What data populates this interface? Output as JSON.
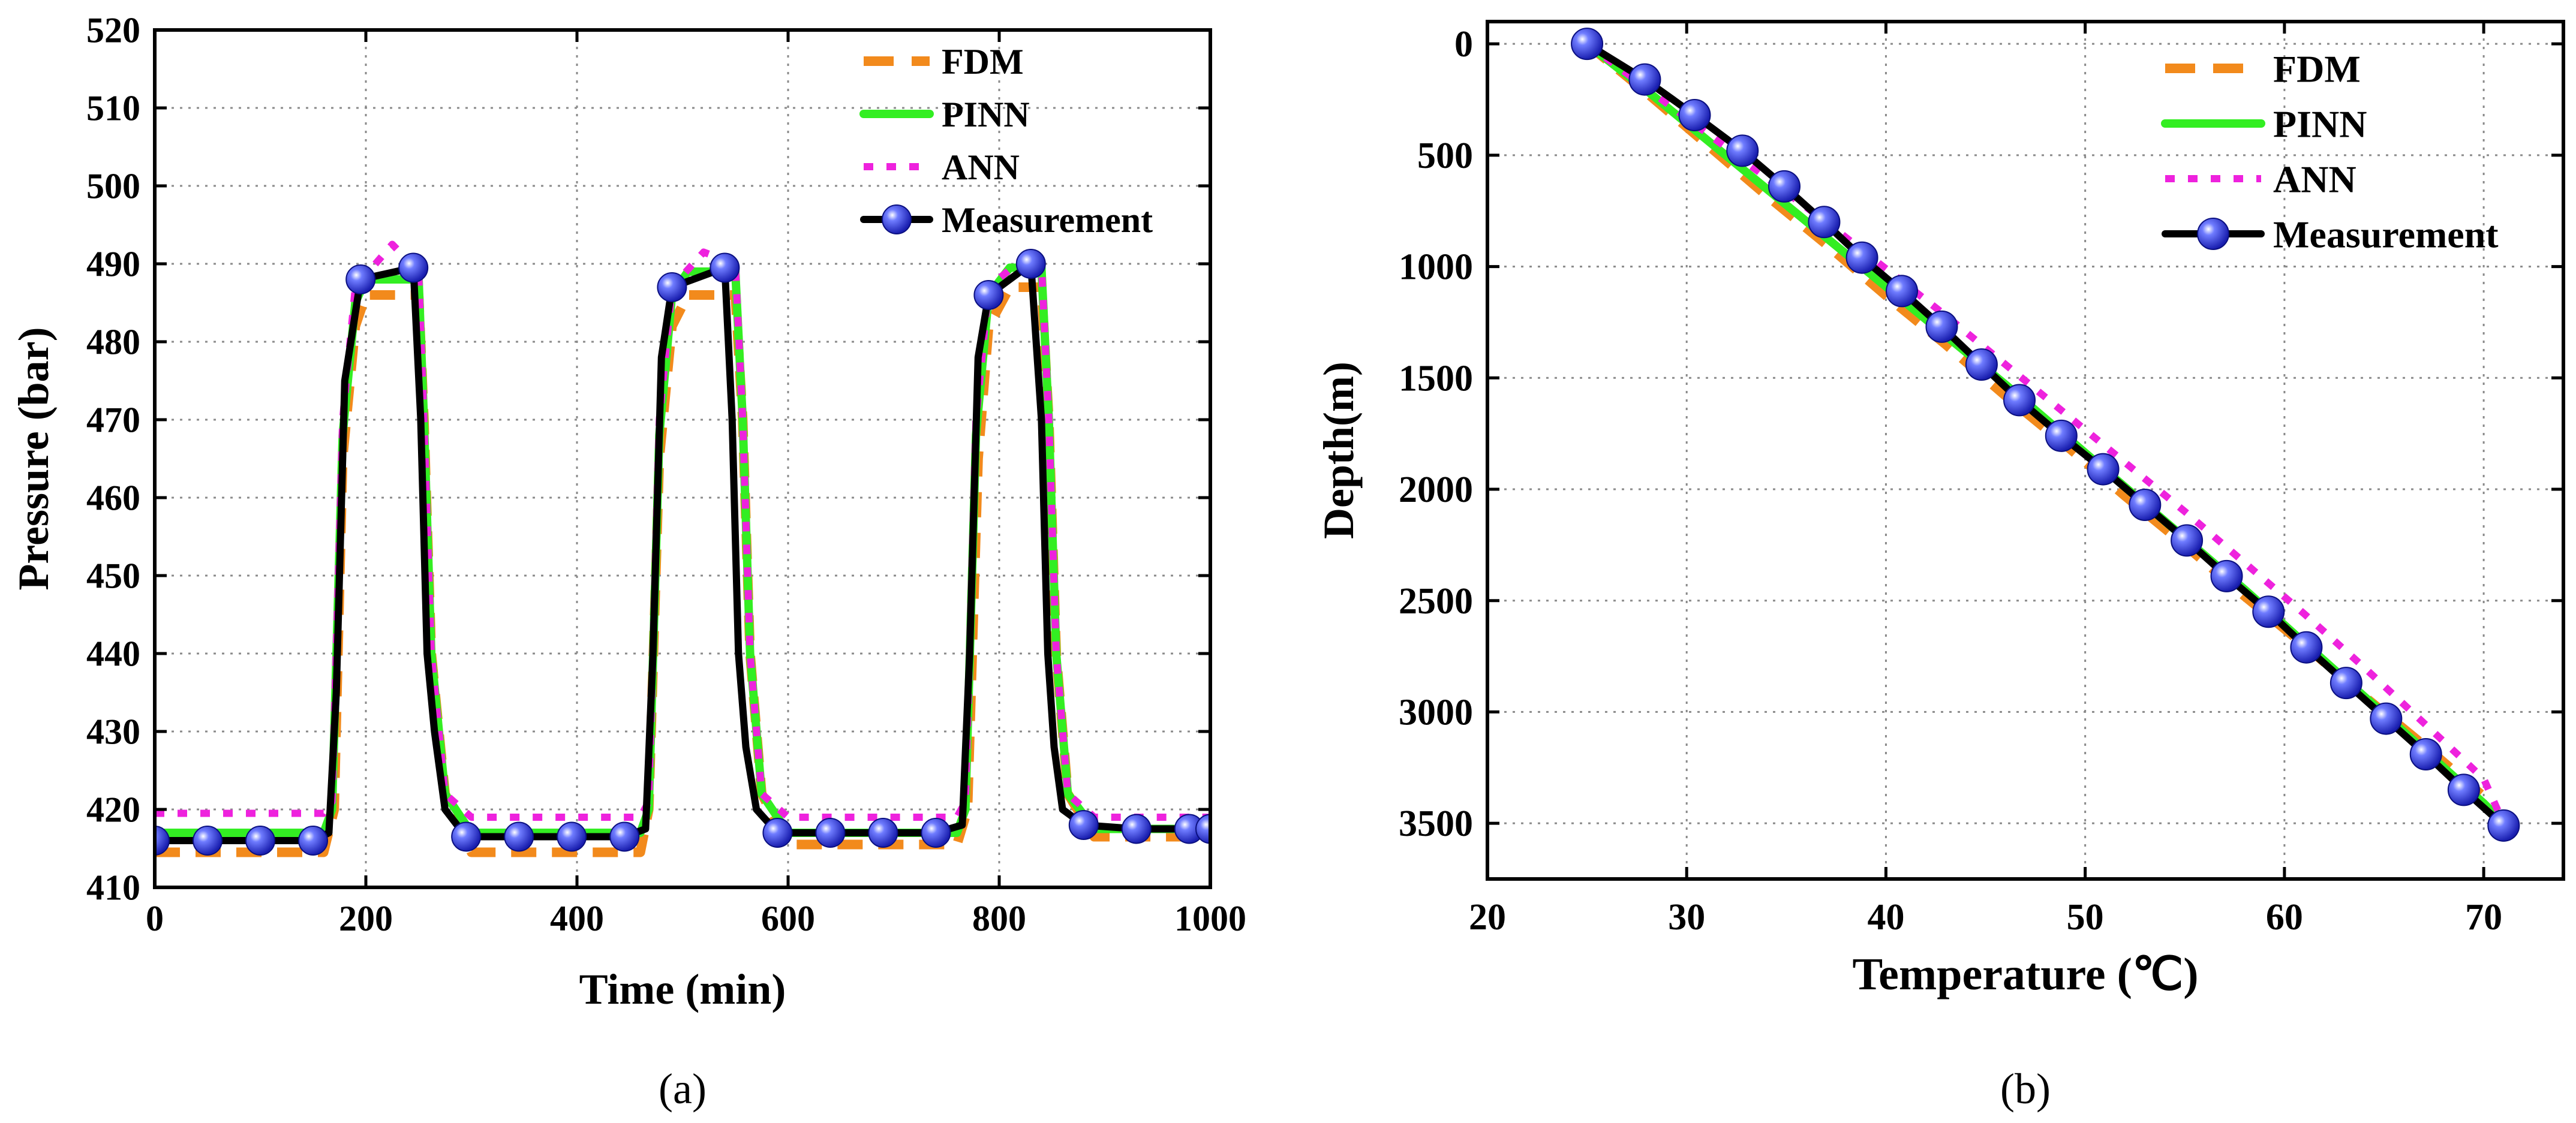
{
  "chart_data": [
    {
      "type": "line",
      "panel_label": "(a)",
      "xlabel": "Time (min)",
      "ylabel": "Pressure (bar)",
      "xlim": [
        0,
        1000
      ],
      "ylim": [
        410,
        520
      ],
      "xticks": [
        0,
        200,
        400,
        600,
        800,
        1000
      ],
      "yticks": [
        410,
        420,
        430,
        440,
        450,
        460,
        470,
        480,
        490,
        500,
        510,
        520
      ],
      "grid": true,
      "legend_position": "top-right",
      "series": [
        {
          "name": "FDM",
          "style": "dashed",
          "color": "#f28a1c",
          "x": [
            0,
            160,
            170,
            178,
            190,
            200,
            250,
            255,
            262,
            275,
            300,
            460,
            468,
            478,
            490,
            505,
            550,
            557,
            564,
            575,
            600,
            760,
            770,
            780,
            790,
            810,
            840,
            847,
            854,
            865,
            890,
            1000
          ],
          "y": [
            414.5,
            414.5,
            420,
            465,
            482,
            486,
            486,
            470,
            440,
            422,
            414.5,
            414.5,
            420,
            465,
            482,
            486,
            486,
            470,
            440,
            422,
            415.5,
            415.5,
            420,
            465,
            482,
            487,
            487,
            470,
            440,
            422,
            416.5,
            416.5
          ]
        },
        {
          "name": "PINN",
          "style": "solid",
          "color": "#33ee22",
          "x": [
            0,
            160,
            168,
            178,
            190,
            200,
            250,
            255,
            262,
            275,
            300,
            460,
            468,
            478,
            490,
            505,
            550,
            557,
            564,
            575,
            600,
            760,
            768,
            778,
            790,
            810,
            840,
            847,
            854,
            865,
            890,
            1000
          ],
          "y": [
            417,
            417,
            420,
            468,
            485,
            488,
            488,
            470,
            440,
            422,
            417,
            417,
            420,
            468,
            486,
            489,
            489,
            470,
            440,
            422,
            417,
            417,
            420,
            468,
            486,
            489.5,
            489.5,
            470,
            440,
            422,
            417.5,
            417.5
          ]
        },
        {
          "name": "ANN",
          "style": "dotted",
          "color": "#ee22dd",
          "x": [
            0,
            160,
            168,
            178,
            190,
            225,
            250,
            255,
            262,
            275,
            300,
            460,
            468,
            478,
            490,
            520,
            550,
            557,
            564,
            575,
            600,
            760,
            768,
            778,
            790,
            830,
            840,
            847,
            854,
            865,
            890,
            1000
          ],
          "y": [
            419.5,
            419.5,
            421,
            470,
            487,
            492.5,
            489,
            470,
            440,
            422,
            419,
            419,
            421,
            470,
            487,
            491.5,
            490,
            470,
            440,
            422,
            419,
            419,
            421,
            470,
            487,
            491.5,
            490,
            470,
            440,
            422,
            419,
            419
          ]
        },
        {
          "name": "Measurement",
          "style": "solid-markers",
          "color": "#000000",
          "marker_color": "#2233dd",
          "x": [
            0,
            50,
            100,
            150,
            165,
            172,
            180,
            195,
            245,
            252,
            258,
            265,
            275,
            295,
            345,
            395,
            445,
            465,
            472,
            480,
            490,
            540,
            547,
            553,
            560,
            570,
            590,
            640,
            690,
            740,
            765,
            772,
            780,
            790,
            830,
            840,
            846,
            852,
            860,
            880,
            930,
            980,
            1000
          ],
          "y": [
            416,
            416,
            416,
            416,
            417,
            435,
            475,
            488,
            489.5,
            470,
            440,
            430,
            420,
            416.5,
            416.5,
            416.5,
            416.5,
            417.5,
            440,
            478,
            487,
            489.5,
            470,
            440,
            428,
            420,
            417,
            417,
            417,
            417,
            418,
            440,
            478,
            486,
            490,
            470,
            440,
            428,
            420,
            418,
            417.5,
            417.5,
            417.5
          ],
          "marker_x": [
            0,
            50,
            100,
            150,
            195,
            245,
            295,
            345,
            395,
            445,
            490,
            540,
            590,
            640,
            690,
            740,
            790,
            830,
            880,
            930,
            980,
            1000
          ],
          "marker_y": [
            416,
            416,
            416,
            416,
            488,
            489.5,
            416.5,
            416.5,
            416.5,
            416.5,
            487,
            489.5,
            417,
            417,
            417,
            417,
            486,
            490,
            418,
            417.5,
            417.5,
            417.5
          ]
        }
      ]
    },
    {
      "type": "line",
      "panel_label": "(b)",
      "xlabel": "Temperature (℃)",
      "ylabel": "Depth(m)",
      "xlim": [
        20,
        74
      ],
      "ylim": [
        3750,
        -100
      ],
      "y_inverted": true,
      "xticks": [
        20,
        30,
        40,
        50,
        60,
        70
      ],
      "yticks": [
        0,
        500,
        1000,
        1500,
        2000,
        2500,
        3000,
        3500
      ],
      "grid": true,
      "legend_position": "top-right",
      "series": [
        {
          "name": "FDM",
          "style": "dashed",
          "color": "#f28a1c",
          "x": [
            25,
            28,
            31,
            34,
            37,
            40,
            43,
            46,
            49,
            52,
            55,
            58,
            61,
            64,
            67,
            70,
            71
          ],
          "y": [
            0,
            220,
            450,
            680,
            900,
            1130,
            1350,
            1580,
            1800,
            2030,
            2250,
            2480,
            2700,
            2930,
            3150,
            3380,
            3500
          ]
        },
        {
          "name": "PINN",
          "style": "solid",
          "color": "#33ee22",
          "x": [
            25,
            28,
            31,
            34,
            37,
            40,
            43,
            46,
            49,
            52,
            55,
            58,
            61,
            64,
            67,
            70,
            71
          ],
          "y": [
            0,
            210,
            430,
            650,
            870,
            1090,
            1310,
            1530,
            1760,
            1990,
            2220,
            2450,
            2690,
            2930,
            3170,
            3410,
            3500
          ]
        },
        {
          "name": "ANN",
          "style": "dotted",
          "color": "#ee22dd",
          "x": [
            25,
            28,
            31,
            34,
            37,
            40,
            43,
            46,
            49,
            52,
            55,
            58,
            61,
            64,
            67,
            70,
            71
          ],
          "y": [
            0,
            200,
            400,
            600,
            800,
            1010,
            1220,
            1440,
            1660,
            1880,
            2100,
            2330,
            2560,
            2800,
            3050,
            3300,
            3500
          ]
        },
        {
          "name": "Measurement",
          "style": "solid-markers",
          "color": "#000000",
          "marker_color": "#2233dd",
          "x": [
            25,
            27.9,
            30.4,
            32.8,
            34.9,
            36.9,
            38.8,
            40.8,
            42.8,
            44.8,
            46.7,
            48.8,
            50.9,
            53,
            55.1,
            57.1,
            59.2,
            61.1,
            63.1,
            65.1,
            67.1,
            69,
            71
          ],
          "y": [
            0,
            160,
            320,
            480,
            640,
            800,
            960,
            1110,
            1270,
            1440,
            1600,
            1760,
            1910,
            2070,
            2230,
            2390,
            2550,
            2710,
            2870,
            3030,
            3190,
            3350,
            3510
          ]
        }
      ]
    }
  ]
}
